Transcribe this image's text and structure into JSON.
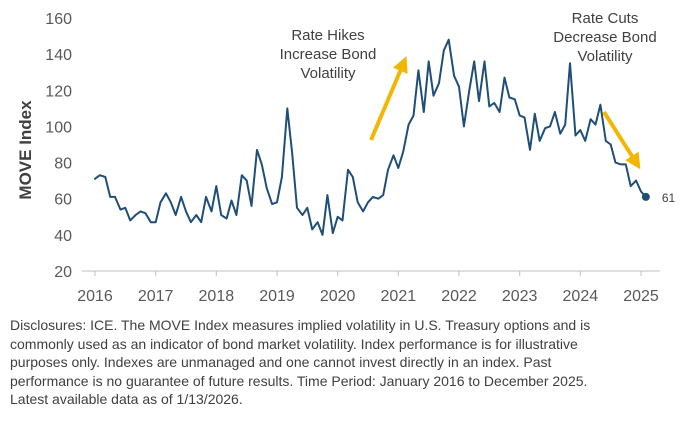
{
  "chart_data": {
    "type": "line",
    "ylabel": "MOVE Index",
    "ylim": [
      20,
      160
    ],
    "yticks": [
      20,
      40,
      60,
      80,
      100,
      120,
      140,
      160
    ],
    "xlim": [
      2016,
      2025.6
    ],
    "xticks": [
      2016,
      2017,
      2018,
      2019,
      2020,
      2021,
      2022,
      2023,
      2024,
      2025
    ],
    "grid": false,
    "line_color": "#1F4E79",
    "arrow_color": "#F2B705",
    "annotations": [
      {
        "lines": [
          "Rate Hikes",
          "Increase Bond",
          "Volatility"
        ]
      },
      {
        "lines": [
          "Rate Cuts",
          "Decrease Bond",
          "Volatility"
        ]
      }
    ],
    "end_label": "61",
    "series": [
      {
        "values": [
          [
            2016.0,
            71
          ],
          [
            2016.08,
            73
          ],
          [
            2016.17,
            72
          ],
          [
            2016.25,
            61
          ],
          [
            2016.33,
            61
          ],
          [
            2016.42,
            54
          ],
          [
            2016.5,
            55
          ],
          [
            2016.58,
            48
          ],
          [
            2016.67,
            51
          ],
          [
            2016.75,
            53
          ],
          [
            2016.83,
            52
          ],
          [
            2016.92,
            47
          ],
          [
            2017.0,
            47
          ],
          [
            2017.08,
            58
          ],
          [
            2017.17,
            63
          ],
          [
            2017.25,
            58
          ],
          [
            2017.33,
            51
          ],
          [
            2017.42,
            61
          ],
          [
            2017.5,
            53
          ],
          [
            2017.58,
            47
          ],
          [
            2017.67,
            51
          ],
          [
            2017.75,
            47
          ],
          [
            2017.83,
            61
          ],
          [
            2017.92,
            53
          ],
          [
            2018.0,
            67
          ],
          [
            2018.08,
            51
          ],
          [
            2018.17,
            49
          ],
          [
            2018.25,
            59
          ],
          [
            2018.33,
            51
          ],
          [
            2018.42,
            73
          ],
          [
            2018.5,
            70
          ],
          [
            2018.58,
            56
          ],
          [
            2018.67,
            87
          ],
          [
            2018.75,
            79
          ],
          [
            2018.83,
            66
          ],
          [
            2018.92,
            57
          ],
          [
            2019.0,
            58
          ],
          [
            2019.08,
            72
          ],
          [
            2019.17,
            110
          ],
          [
            2019.25,
            85
          ],
          [
            2019.33,
            55
          ],
          [
            2019.42,
            51
          ],
          [
            2019.5,
            55
          ],
          [
            2019.58,
            43
          ],
          [
            2019.67,
            47
          ],
          [
            2019.75,
            40
          ],
          [
            2019.83,
            62
          ],
          [
            2019.92,
            41
          ],
          [
            2020.0,
            50
          ],
          [
            2020.08,
            48
          ],
          [
            2020.17,
            76
          ],
          [
            2020.25,
            72
          ],
          [
            2020.33,
            58
          ],
          [
            2020.42,
            53
          ],
          [
            2020.5,
            58
          ],
          [
            2020.58,
            61
          ],
          [
            2020.67,
            60
          ],
          [
            2020.75,
            62
          ],
          [
            2020.83,
            76
          ],
          [
            2020.92,
            84
          ],
          [
            2021.0,
            77
          ],
          [
            2021.08,
            86
          ],
          [
            2021.17,
            101
          ],
          [
            2021.25,
            106
          ],
          [
            2021.33,
            131
          ],
          [
            2021.42,
            108
          ],
          [
            2021.5,
            136
          ],
          [
            2021.58,
            117
          ],
          [
            2021.67,
            124
          ],
          [
            2021.75,
            142
          ],
          [
            2021.83,
            148
          ],
          [
            2021.92,
            128
          ],
          [
            2022.0,
            122
          ],
          [
            2022.08,
            100
          ],
          [
            2022.17,
            120
          ],
          [
            2022.25,
            136
          ],
          [
            2022.33,
            114
          ],
          [
            2022.42,
            136
          ],
          [
            2022.5,
            111
          ],
          [
            2022.58,
            113
          ],
          [
            2022.67,
            108
          ],
          [
            2022.75,
            127
          ],
          [
            2022.83,
            116
          ],
          [
            2022.92,
            115
          ],
          [
            2023.0,
            106
          ],
          [
            2023.08,
            105
          ],
          [
            2023.17,
            87
          ],
          [
            2023.25,
            107
          ],
          [
            2023.33,
            92
          ],
          [
            2023.42,
            99
          ],
          [
            2023.5,
            100
          ],
          [
            2023.58,
            108
          ],
          [
            2023.67,
            96
          ],
          [
            2023.75,
            101
          ],
          [
            2023.83,
            135
          ],
          [
            2023.92,
            95
          ],
          [
            2024.0,
            98
          ],
          [
            2024.08,
            92
          ],
          [
            2024.17,
            104
          ],
          [
            2024.25,
            101
          ],
          [
            2024.33,
            112
          ],
          [
            2024.42,
            92
          ],
          [
            2024.5,
            90
          ],
          [
            2024.58,
            80
          ],
          [
            2024.67,
            79
          ],
          [
            2024.75,
            79
          ],
          [
            2024.83,
            67
          ],
          [
            2024.92,
            70
          ],
          [
            2025.0,
            64
          ],
          [
            2025.08,
            61
          ]
        ]
      }
    ]
  },
  "disclosure": {
    "lines": [
      "Disclosures: ICE. The MOVE Index measures implied volatility in U.S. Treasury options and is",
      "commonly used as an indicator of bond market volatility. Index performance is for illustrative",
      "purposes only. Indexes are unmanaged and one cannot invest directly in an index. Past",
      "performance is no guarantee of future results. Time Period: January 2016 to December 2025.",
      "Latest available data as of 1/13/2026."
    ]
  }
}
